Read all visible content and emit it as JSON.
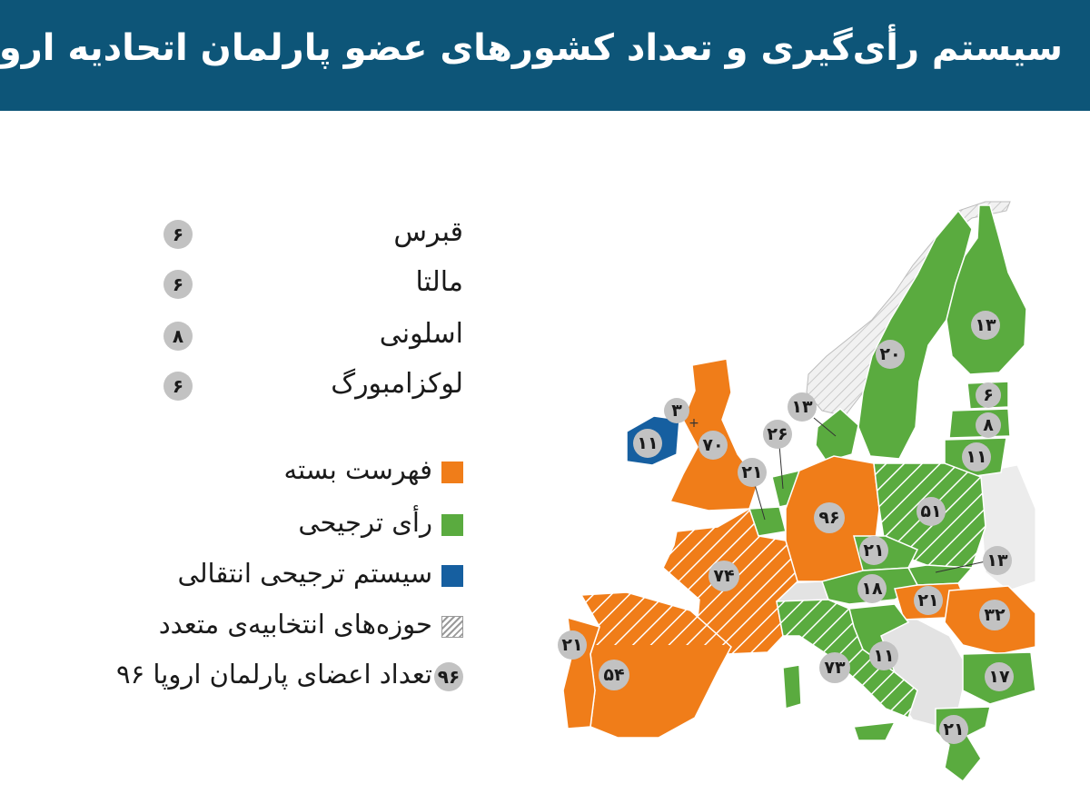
{
  "title": "سیستم رأی‌گیری و تعداد کشورهای عضو پارلمان اتحادیه اروپا",
  "small_states": [
    {
      "name": "قبرس",
      "seats": "۶"
    },
    {
      "name": "مالتا",
      "seats": "۶"
    },
    {
      "name": "اسلونی",
      "seats": "۸"
    },
    {
      "name": "لوکزامبورگ",
      "seats": "۶"
    }
  ],
  "legend": {
    "closed_list": "فهرست بسته",
    "preferential": "رأی ترجیحی",
    "stv": "سیستم ترجیحی انتقالی",
    "multiple_constituencies": "حوزه‌های انتخابیه‌ی متعدد",
    "seats_badge": "۹۶",
    "seats_label": "تعداد اعضای پارلمان اروپا ۹۶"
  },
  "colors": {
    "header": "#0d5578",
    "closed_list": "#f07d19",
    "preferential": "#5aab3f",
    "stv": "#165fa0",
    "non_member": "#e3e3e3",
    "badge": "#c2c2c2"
  },
  "map_labels": {
    "finland": "۱۳",
    "sweden": "۲۰",
    "estonia": "۶",
    "latvia": "۸",
    "lithuania": "۱۱",
    "denmark": "۱۳",
    "netherlands": "۲۶",
    "belgium": "۲۱",
    "northern_ireland": "۳",
    "ireland": "۱۱",
    "uk": "۷۰",
    "germany": "۹۶",
    "poland": "۵۱",
    "czech": "۲۱",
    "slovakia": "۱۳",
    "austria": "۱۸",
    "hungary": "۲۱",
    "romania": "۳۲",
    "croatia": "۱۱",
    "bulgaria": "۱۷",
    "greece": "۲۱",
    "france": "۷۴",
    "italy": "۷۳",
    "spain": "۵۴",
    "portugal": "۲۱"
  }
}
